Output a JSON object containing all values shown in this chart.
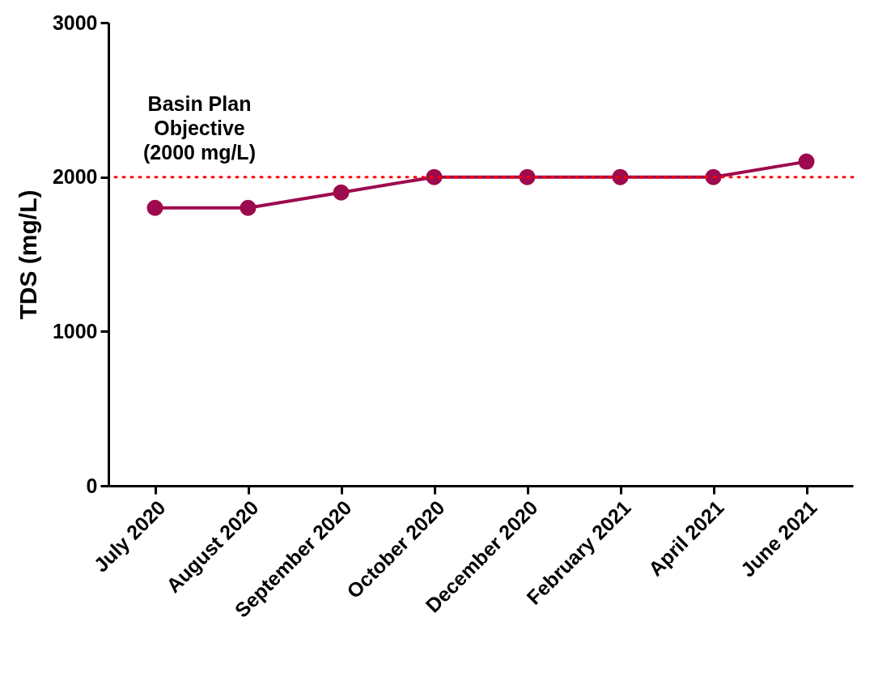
{
  "chart_data": {
    "type": "line",
    "ylabel": "TDS (mg/L)",
    "categories": [
      "July 2020",
      "August 2020",
      "September 2020",
      "October 2020",
      "December 2020",
      "February 2021",
      "April 2021",
      "June 2021"
    ],
    "series": [
      {
        "color": "#9e0a4e",
        "values": [
          1800,
          1800,
          1900,
          2000,
          2000,
          2000,
          2000,
          2100
        ]
      }
    ],
    "ylim": [
      0,
      3000
    ],
    "yticks": [
      0,
      1000,
      2000,
      3000
    ],
    "grid": false,
    "legend": false,
    "marker": "circle",
    "line_style": "solid",
    "ref_lines": [
      {
        "axis": "y",
        "value": 2000,
        "label": "Basin Plan Objective (2000 mg/L)",
        "color": "#ff0000",
        "line_style": "dotted"
      }
    ]
  }
}
